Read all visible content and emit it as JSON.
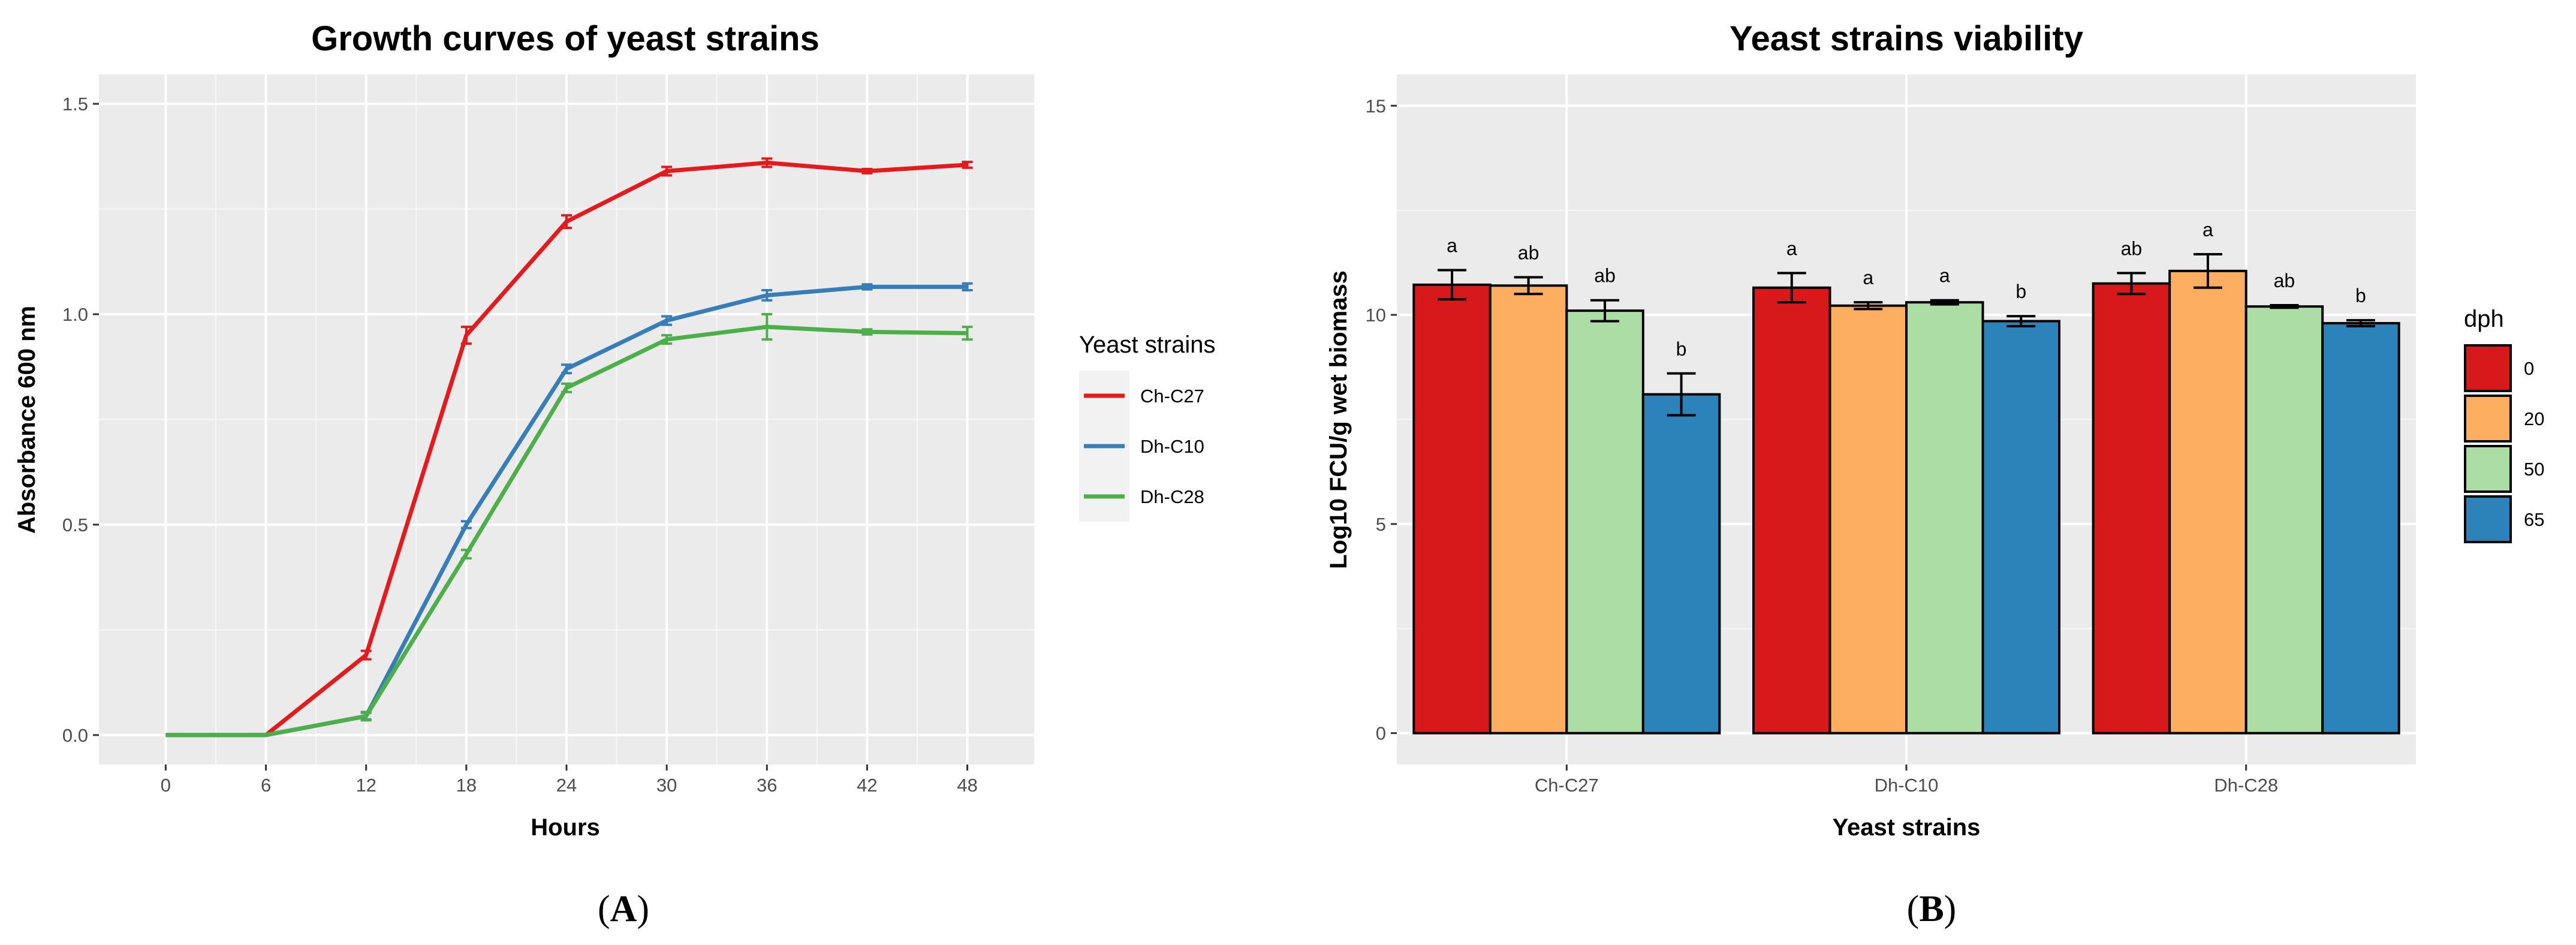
{
  "chart_data": [
    {
      "type": "line",
      "title": "Growth curves of yeast strains",
      "xlabel": "Hours",
      "ylabel": "Absorbance 600 nm",
      "xlim": [
        -4,
        52
      ],
      "ylim": [
        -0.07,
        1.57
      ],
      "x_ticks": [
        0,
        6,
        12,
        18,
        24,
        30,
        36,
        42,
        48
      ],
      "y_ticks": [
        0.0,
        0.5,
        1.0,
        1.5
      ],
      "x_tick_labels": [
        "0",
        "6",
        "12",
        "18",
        "24",
        "30",
        "36",
        "42",
        "48"
      ],
      "y_tick_labels": [
        "0.0",
        "0.5",
        "1.0",
        "1.5"
      ],
      "grid": true,
      "legend_title": "Yeast strains",
      "legend_position": "right",
      "x": [
        0,
        6,
        12,
        18,
        24,
        30,
        36,
        42,
        48
      ],
      "series": [
        {
          "name": "Ch-C27",
          "color": "#e41a1c",
          "values": [
            0.0,
            0.0,
            0.19,
            0.95,
            1.22,
            1.34,
            1.36,
            1.34,
            1.355
          ],
          "errors": [
            0.0,
            0.0,
            0.01,
            0.02,
            0.015,
            0.01,
            0.01,
            0.005,
            0.007
          ]
        },
        {
          "name": "Dh-C10",
          "color": "#377eb8",
          "values": [
            0.0,
            0.0,
            0.045,
            0.5,
            0.87,
            0.985,
            1.045,
            1.065,
            1.065
          ],
          "errors": [
            0.0,
            0.0,
            0.008,
            0.008,
            0.01,
            0.01,
            0.012,
            0.006,
            0.008
          ]
        },
        {
          "name": "Dh-C28",
          "color": "#4daf4a",
          "values": [
            0.0,
            0.0,
            0.045,
            0.43,
            0.825,
            0.94,
            0.97,
            0.958,
            0.955
          ],
          "errors": [
            0.0,
            0.0,
            0.01,
            0.01,
            0.01,
            0.01,
            0.03,
            0.006,
            0.015
          ]
        }
      ]
    },
    {
      "type": "bar",
      "title": "Yeast strains viability",
      "xlabel": "Yeast strains",
      "ylabel": "Log10 FCU/g wet biomass",
      "ylim": [
        -0.75,
        15.75
      ],
      "y_ticks": [
        0,
        5,
        10,
        15
      ],
      "y_tick_labels": [
        "0",
        "5",
        "10",
        "15"
      ],
      "grid": true,
      "categories": [
        "Ch-C27",
        "Dh-C10",
        "Dh-C28"
      ],
      "legend_title": "dph",
      "legend_position": "right",
      "series": [
        {
          "name": "0",
          "color": "#d7191c",
          "values": [
            10.72,
            10.65,
            10.75
          ],
          "errors": [
            0.35,
            0.35,
            0.25
          ],
          "letters": [
            "a",
            "a",
            "ab"
          ]
        },
        {
          "name": "20",
          "color": "#fdae61",
          "values": [
            10.7,
            10.22,
            11.05
          ],
          "errors": [
            0.2,
            0.08,
            0.4
          ],
          "letters": [
            "ab",
            "a",
            "a"
          ]
        },
        {
          "name": "50",
          "color": "#abdda4",
          "values": [
            10.1,
            10.3,
            10.2
          ],
          "errors": [
            0.25,
            0.05,
            0.03
          ],
          "letters": [
            "ab",
            "a",
            "ab"
          ]
        },
        {
          "name": "65",
          "color": "#2b83ba",
          "values": [
            8.1,
            9.85,
            9.8
          ],
          "errors": [
            0.5,
            0.12,
            0.07
          ],
          "letters": [
            "b",
            "b",
            "b"
          ]
        }
      ]
    }
  ],
  "panel_labels": [
    {
      "open": "(",
      "letter": "A",
      "close": ")"
    },
    {
      "open": "(",
      "letter": "B",
      "close": ")"
    }
  ]
}
